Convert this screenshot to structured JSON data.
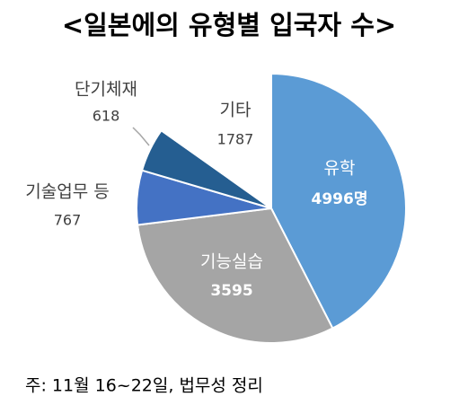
{
  "chart_data": {
    "type": "pie",
    "title": "<일본에의 유형별 입국자 수>",
    "categories": [
      "유학",
      "기능실습",
      "기술업무 등",
      "단기체재",
      "기타"
    ],
    "values": [
      4996,
      3595,
      767,
      618,
      1787
    ],
    "value_labels": [
      "4996명",
      "3595",
      "767",
      "618",
      "1787"
    ],
    "colors": [
      "#5b9bd5",
      "#a5a5a5",
      "#4472c4",
      "#255e91",
      "#ffffff"
    ],
    "note": "주: 11월 16~22일, 법무성 정리"
  }
}
